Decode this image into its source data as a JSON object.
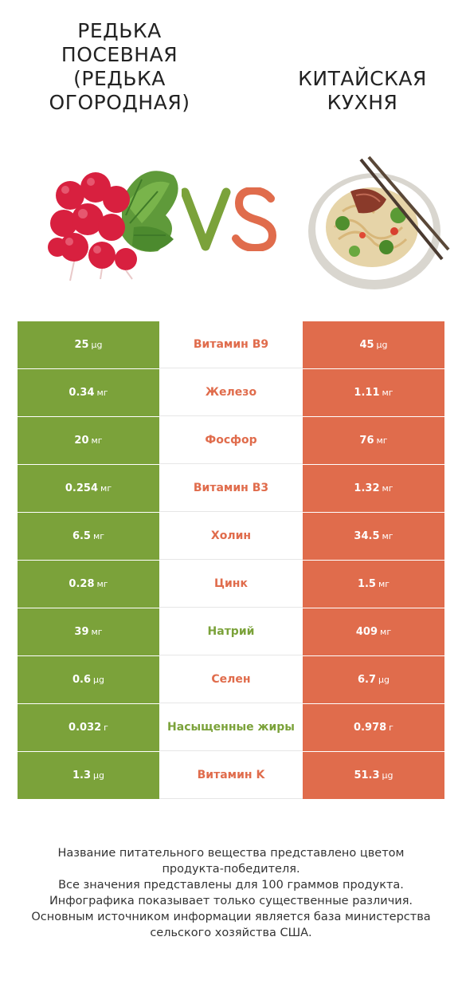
{
  "header": {
    "left_title": "Редька посевная (Редька огородная)",
    "right_title": "Китайская кухня",
    "vs_left_color": "#7ba23a",
    "vs_right_color": "#e06c4c"
  },
  "images": {
    "left": "radish-bunch-image",
    "right": "chinese-noodle-bowl-image"
  },
  "colors": {
    "left_winner": "#7ba23a",
    "right_winner": "#e06c4c"
  },
  "chart_data": {
    "type": "table",
    "columns": [
      "Редька посевная (Редька огородная)",
      "Китайская кухня"
    ],
    "rows": [
      {
        "nutrient": "Витамин B9",
        "left_value": "25",
        "left_unit": "µg",
        "right_value": "45",
        "right_unit": "µg",
        "winner": "right"
      },
      {
        "nutrient": "Железо",
        "left_value": "0.34",
        "left_unit": "мг",
        "right_value": "1.11",
        "right_unit": "мг",
        "winner": "right"
      },
      {
        "nutrient": "Фосфор",
        "left_value": "20",
        "left_unit": "мг",
        "right_value": "76",
        "right_unit": "мг",
        "winner": "right"
      },
      {
        "nutrient": "Витамин B3",
        "left_value": "0.254",
        "left_unit": "мг",
        "right_value": "1.32",
        "right_unit": "мг",
        "winner": "right"
      },
      {
        "nutrient": "Холин",
        "left_value": "6.5",
        "left_unit": "мг",
        "right_value": "34.5",
        "right_unit": "мг",
        "winner": "right"
      },
      {
        "nutrient": "Цинк",
        "left_value": "0.28",
        "left_unit": "мг",
        "right_value": "1.5",
        "right_unit": "мг",
        "winner": "right"
      },
      {
        "nutrient": "Натрий",
        "left_value": "39",
        "left_unit": "мг",
        "right_value": "409",
        "right_unit": "мг",
        "winner": "left"
      },
      {
        "nutrient": "Селен",
        "left_value": "0.6",
        "left_unit": "µg",
        "right_value": "6.7",
        "right_unit": "µg",
        "winner": "right"
      },
      {
        "nutrient": "Насыщенные жиры",
        "left_value": "0.032",
        "left_unit": "г",
        "right_value": "0.978",
        "right_unit": "г",
        "winner": "left"
      },
      {
        "nutrient": "Витамин K",
        "left_value": "1.3",
        "left_unit": "µg",
        "right_value": "51.3",
        "right_unit": "µg",
        "winner": "right"
      }
    ]
  },
  "footer": {
    "lines": [
      "Название питательного вещества представлено цветом",
      "продукта-победителя.",
      "Все значения представлены для 100 граммов продукта.",
      "Инфографика показывает только существенные различия.",
      "Основным источником информации является база министерства",
      "сельского хозяйства США."
    ]
  }
}
